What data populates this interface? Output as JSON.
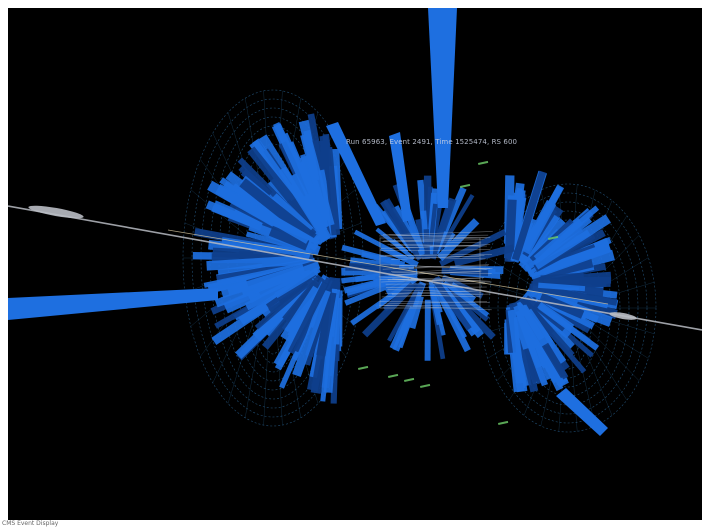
{
  "viewer": {
    "event_label": "Run 65963, Event 2491, Time 1525474, RS 600",
    "status_text": "CMS Event Display"
  },
  "colors": {
    "background": "#000000",
    "calorimeter_tower": "#1e6fe0",
    "tower_shade": "#0f3f8c",
    "detector_wireframe": "#2d6ea3",
    "beam_line": "#b9bcc4",
    "track": "#d9c9a0",
    "hits": "#6fd06a"
  },
  "icons": {
    "scene": "detector-event-3d-icon"
  }
}
